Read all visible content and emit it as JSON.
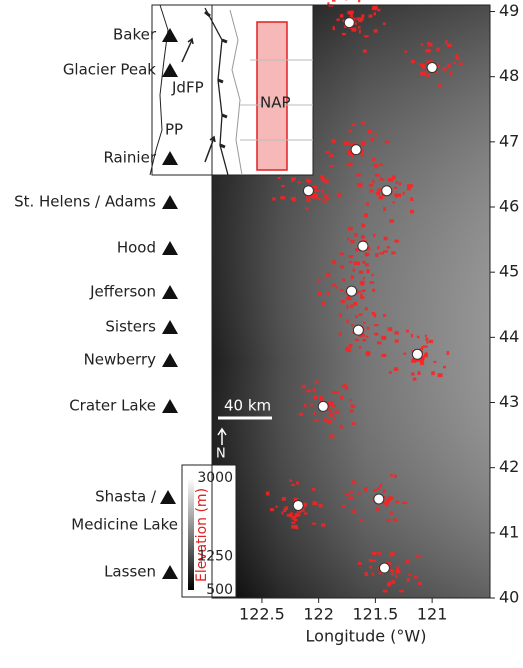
{
  "map": {
    "xlabel": "Longitude (°W)",
    "xlim": [
      122.94,
      120.49
    ],
    "ylim": [
      40,
      49.1
    ],
    "xticks": [
      122.5,
      122,
      121.5,
      121
    ],
    "yticks": [
      49,
      48,
      47,
      46,
      45,
      44,
      43,
      42,
      41,
      40
    ],
    "volcano_labels": [
      [
        "Baker"
      ],
      [
        "Glacier Peak"
      ],
      [
        "Rainier"
      ],
      [
        "St. Helens / Adams"
      ],
      [
        "Hood"
      ],
      [
        "Jefferson"
      ],
      [
        "Sisters"
      ],
      [
        "Newberry"
      ],
      [
        "Crater Lake"
      ],
      [
        "Shasta /",
        "Medicine Lake"
      ],
      [
        "Lassen"
      ]
    ],
    "volcanoes": {
      "lon": [
        121.73,
        121.0,
        121.67,
        122.09,
        121.4,
        121.61,
        121.71,
        121.65,
        121.13,
        121.96,
        122.18,
        121.47,
        121.42
      ],
      "lat": [
        48.83,
        48.14,
        46.88,
        46.25,
        46.25,
        45.4,
        44.71,
        44.11,
        43.74,
        42.94,
        41.42,
        41.52,
        40.46
      ]
    },
    "scale_bar": "40 km",
    "north": "N",
    "colorbar": {
      "label": "Elevation (m)",
      "lim": [
        500,
        3000
      ],
      "ticks": [
        3000,
        1250,
        500
      ]
    },
    "inset": {
      "labels": [
        "JdFP",
        "PP",
        "NAP"
      ]
    }
  }
}
